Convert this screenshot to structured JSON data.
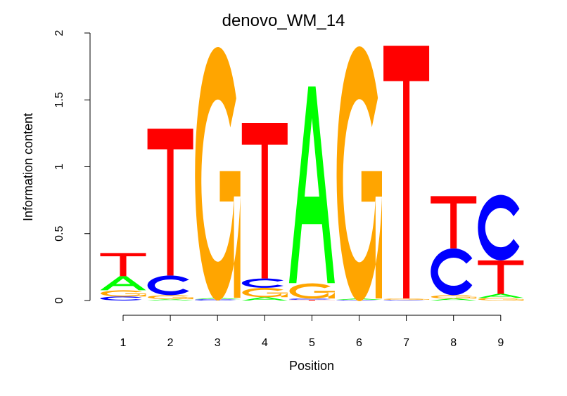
{
  "chart_data": {
    "type": "sequence-logo",
    "title": "denovo_WM_14",
    "xlabel": "Position",
    "ylabel": "Information content",
    "ylim": [
      0,
      2
    ],
    "yticks": [
      "0",
      "0.5",
      "1",
      "1.5",
      "2"
    ],
    "ytick_values": [
      0,
      0.5,
      1,
      1.5,
      2
    ],
    "positions": [
      "1",
      "2",
      "3",
      "4",
      "5",
      "6",
      "7",
      "8",
      "9"
    ],
    "colors": {
      "A": "#00ff00",
      "C": "#0000ff",
      "G": "#ffa500",
      "T": "#ff0000"
    },
    "stacks": [
      [
        {
          "l": "C",
          "v": 0.03
        },
        {
          "l": "G",
          "v": 0.047
        },
        {
          "l": "A",
          "v": 0.105
        },
        {
          "l": "T",
          "v": 0.173
        }
      ],
      [
        {
          "l": "A",
          "v": 0.01
        },
        {
          "l": "G",
          "v": 0.03
        },
        {
          "l": "C",
          "v": 0.147
        },
        {
          "l": "T",
          "v": 1.097
        }
      ],
      [
        {
          "l": "C",
          "v": 0.01
        },
        {
          "l": "A",
          "v": 0.01
        },
        {
          "l": "G",
          "v": 1.895
        }
      ],
      [
        {
          "l": "A",
          "v": 0.025
        },
        {
          "l": "G",
          "v": 0.07
        },
        {
          "l": "C",
          "v": 0.07
        },
        {
          "l": "T",
          "v": 1.163
        }
      ],
      [
        {
          "l": "T",
          "v": 0.005
        },
        {
          "l": "C",
          "v": 0.01
        },
        {
          "l": "G",
          "v": 0.115
        },
        {
          "l": "A",
          "v": 1.47
        }
      ],
      [
        {
          "l": "C",
          "v": 0.005
        },
        {
          "l": "A",
          "v": 0.01
        },
        {
          "l": "G",
          "v": 1.905
        }
      ],
      [
        {
          "l": "C",
          "v": 0.005
        },
        {
          "l": "G",
          "v": 0.01
        },
        {
          "l": "T",
          "v": 1.89
        }
      ],
      [
        {
          "l": "A",
          "v": 0.015
        },
        {
          "l": "G",
          "v": 0.025
        },
        {
          "l": "C",
          "v": 0.35
        },
        {
          "l": "T",
          "v": 0.39
        }
      ],
      [
        {
          "l": "G",
          "v": 0.02
        },
        {
          "l": "A",
          "v": 0.03
        },
        {
          "l": "T",
          "v": 0.25
        },
        {
          "l": "C",
          "v": 0.49
        }
      ]
    ]
  }
}
